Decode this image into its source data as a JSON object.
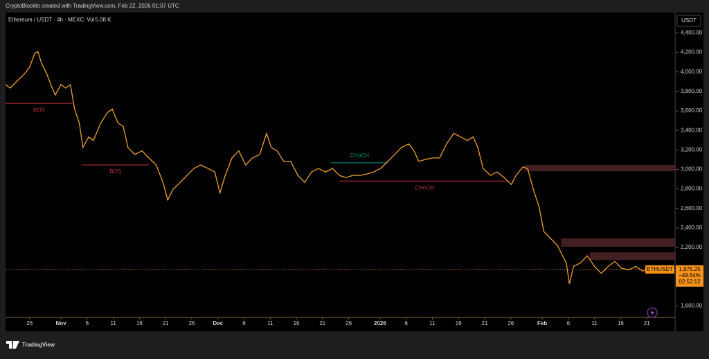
{
  "header": {
    "credit": "CryptoBlockto created with TradingView.com, Feb 22, 2026 01:07 UTC",
    "logo": "TradingView"
  },
  "chart_data": {
    "type": "line",
    "title": "Ethereum / USDT · 4h · MEXC",
    "volume_label": "Vol",
    "volume": "5.08 K",
    "y_axis_label": "USDT",
    "symbol": "ETHUSDT",
    "last_price": {
      "value": 1975.25,
      "label": "1,975.25"
    },
    "change": "−49.64%",
    "countdown": "02:52:12",
    "x": [
      -4.6,
      -3.7,
      -2.4,
      -1,
      0,
      1,
      1.6,
      2.3,
      3.3,
      4.2,
      4.9,
      6,
      6.9,
      7.8,
      8.6,
      9.5,
      10.2,
      11.3,
      12.2,
      13.6,
      14.9,
      15.8,
      16.9,
      17.9,
      18.8,
      20.1,
      21.5,
      22.8,
      24.2,
      25.5,
      26.4,
      27.4,
      28.8,
      30.1,
      31.4,
      32.7,
      34.1,
      35.4,
      36.4,
      37.4,
      38.7,
      40,
      41.3,
      42.6,
      44,
      45.3,
      46.2,
      47.3,
      48.6,
      49.9,
      51.3,
      52.6,
      53.9,
      55.2,
      56.6,
      57.9,
      59.2,
      60.5,
      61.8,
      63.2,
      64.5,
      65.8,
      67.1,
      68.5,
      69.8,
      71.1,
      72.5,
      73.5,
      74.4,
      75.8,
      77.1,
      78.4,
      79.7,
      81.1,
      82.4,
      83.7,
      84.8,
      85.7,
      86.7,
      88.1,
      89.4,
      90.7,
      92.1,
      93,
      94.3,
      95.2,
      96.3,
      97.4,
      98.3,
      99.6,
      100.9,
      101.9,
      102.6,
      103.2,
      104,
      105.3,
      106.6,
      108,
      109.3,
      110.6,
      111.9,
      113.2,
      114.6,
      115.9,
      117.2,
      118.5,
      119.5
    ],
    "series": [
      {
        "name": "ETHUSDT",
        "color": "#f0a030",
        "values": [
          3870,
          3834,
          3906,
          3978,
          4049,
          4193,
          4207,
          4085,
          3978,
          3849,
          3763,
          3870,
          3834,
          3870,
          3619,
          3476,
          3225,
          3333,
          3297,
          3476,
          3584,
          3619,
          3476,
          3440,
          3225,
          3154,
          3190,
          3118,
          3046,
          2867,
          2687,
          2795,
          2867,
          2939,
          3010,
          3046,
          3010,
          2974,
          2759,
          2939,
          3118,
          3190,
          3046,
          3118,
          3154,
          3369,
          3225,
          3190,
          3082,
          3082,
          2939,
          2867,
          2974,
          3010,
          2974,
          3010,
          2939,
          2917,
          2939,
          2939,
          2953,
          2974,
          3010,
          3082,
          3154,
          3225,
          3261,
          3190,
          3082,
          3104,
          3118,
          3118,
          3261,
          3369,
          3333,
          3297,
          3333,
          3225,
          3010,
          2939,
          2974,
          2917,
          2846,
          2939,
          3025,
          3010,
          2795,
          2616,
          2365,
          2293,
          2222,
          2114,
          2042,
          1827,
          2006,
          2042,
          2114,
          2006,
          1935,
          2006,
          2057,
          1985,
          1971,
          2006,
          1957,
          1985,
          1975.25
        ]
      }
    ],
    "xlim": [
      -4.6,
      123.4
    ],
    "ylim": [
      1483,
      4609
    ],
    "xticks": [
      {
        "value": 0,
        "label": "26"
      },
      {
        "value": 6,
        "label": "Nov"
      },
      {
        "value": 11,
        "label": "6"
      },
      {
        "value": 16,
        "label": "11"
      },
      {
        "value": 21,
        "label": "16"
      },
      {
        "value": 26,
        "label": "21"
      },
      {
        "value": 31,
        "label": "26"
      },
      {
        "value": 36,
        "label": "Dec"
      },
      {
        "value": 41,
        "label": "6"
      },
      {
        "value": 46,
        "label": "11"
      },
      {
        "value": 51,
        "label": "16"
      },
      {
        "value": 56,
        "label": "21"
      },
      {
        "value": 61,
        "label": "26"
      },
      {
        "value": 67,
        "label": "2026"
      },
      {
        "value": 72,
        "label": "6"
      },
      {
        "value": 77,
        "label": "11"
      },
      {
        "value": 82,
        "label": "16"
      },
      {
        "value": 87,
        "label": "21"
      },
      {
        "value": 92,
        "label": "26"
      },
      {
        "value": 98,
        "label": "Feb"
      },
      {
        "value": 103,
        "label": "6"
      },
      {
        "value": 108,
        "label": "11"
      },
      {
        "value": 113,
        "label": "16"
      },
      {
        "value": 118,
        "label": "21"
      }
    ],
    "yticks": [
      {
        "value": 1600,
        "label": "1,600.00"
      },
      {
        "value": 2200,
        "label": "2,200.00"
      },
      {
        "value": 2400,
        "label": "2,400.00"
      },
      {
        "value": 2600,
        "label": "2,600.00"
      },
      {
        "value": 2800,
        "label": "2,800.00"
      },
      {
        "value": 3000,
        "label": "3,000.00"
      },
      {
        "value": 3200,
        "label": "3,200.00"
      },
      {
        "value": 3400,
        "label": "3,400.00"
      },
      {
        "value": 3600,
        "label": "3,600.00"
      },
      {
        "value": 3800,
        "label": "3,800.00"
      },
      {
        "value": 4000,
        "label": "4,000.00"
      },
      {
        "value": 4200,
        "label": "4,200.00"
      },
      {
        "value": 4400,
        "label": "4,400.00"
      }
    ],
    "structure": [
      {
        "text": "BOS",
        "start": -4.6,
        "end": 8.2,
        "level": 3677,
        "color": "#c2303c"
      },
      {
        "text": "BOS",
        "start": 10,
        "end": 22.8,
        "level": 3046,
        "color": "#c2303c"
      },
      {
        "text": "CHoCH",
        "start": 57.6,
        "end": 68.5,
        "level": 3068,
        "color": "#089981"
      },
      {
        "text": "CHoCH",
        "start": 59.2,
        "end": 91.7,
        "level": 2881,
        "color": "#c2303c"
      }
    ],
    "zones": [
      {
        "start": 94.6,
        "low": 2981,
        "high": 3046
      },
      {
        "start": 101.6,
        "low": 2207,
        "high": 2293
      },
      {
        "start": 107.1,
        "low": 2071,
        "high": 2150
      }
    ]
  }
}
